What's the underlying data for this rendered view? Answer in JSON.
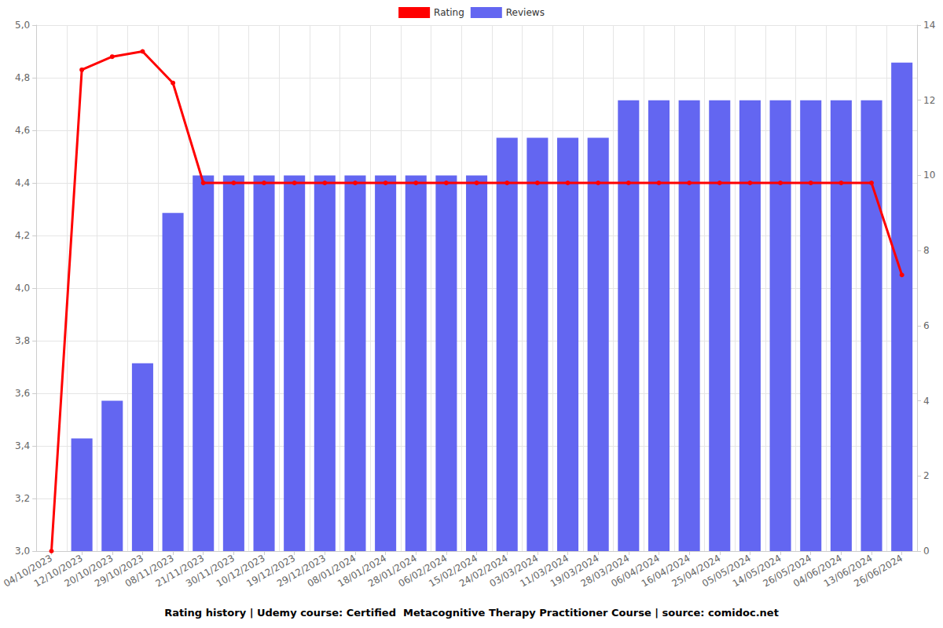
{
  "chart_data": {
    "type": "bar",
    "title": "Rating history | Udemy course: Certified  Metacognitive Therapy Practitioner Course | source: comidoc.net",
    "categories": [
      "04/10/2023",
      "12/10/2023",
      "20/10/2023",
      "29/10/2023",
      "08/11/2023",
      "21/11/2023",
      "30/11/2023",
      "10/12/2023",
      "19/12/2023",
      "29/12/2023",
      "08/01/2024",
      "18/01/2024",
      "28/01/2024",
      "06/02/2024",
      "15/02/2024",
      "24/02/2024",
      "03/03/2024",
      "11/03/2024",
      "19/03/2024",
      "28/03/2024",
      "06/04/2024",
      "16/04/2024",
      "25/04/2024",
      "05/05/2024",
      "14/05/2024",
      "26/05/2024",
      "04/06/2024",
      "13/06/2024",
      "26/06/2024"
    ],
    "series": [
      {
        "name": "Rating",
        "type": "line",
        "color": "#ff0000",
        "marker": "circle",
        "values": [
          3.0,
          4.83,
          4.88,
          4.9,
          4.78,
          4.4,
          4.4,
          4.4,
          4.4,
          4.4,
          4.4,
          4.4,
          4.4,
          4.4,
          4.4,
          4.4,
          4.4,
          4.4,
          4.4,
          4.4,
          4.4,
          4.4,
          4.4,
          4.4,
          4.4,
          4.4,
          4.4,
          4.4,
          4.05
        ]
      },
      {
        "name": "Reviews",
        "type": "bar",
        "color": "#6366f1",
        "axis": "y2",
        "values": [
          0,
          3,
          4,
          5,
          9,
          10,
          10,
          10,
          10,
          10,
          10,
          10,
          10,
          10,
          10,
          11,
          11,
          11,
          11,
          12,
          12,
          12,
          12,
          12,
          12,
          12,
          12,
          12,
          13
        ]
      }
    ],
    "ylim": [
      3.0,
      5.0
    ],
    "yticks": [
      {
        "value": 3.0,
        "label": "3,0"
      },
      {
        "value": 3.2,
        "label": "3,2"
      },
      {
        "value": 3.4,
        "label": "3,4"
      },
      {
        "value": 3.6,
        "label": "3,6"
      },
      {
        "value": 3.8,
        "label": "3,8"
      },
      {
        "value": 4.0,
        "label": "4,0"
      },
      {
        "value": 4.2,
        "label": "4,2"
      },
      {
        "value": 4.4,
        "label": "4,4"
      },
      {
        "value": 4.6,
        "label": "4,6"
      },
      {
        "value": 4.8,
        "label": "4,8"
      },
      {
        "value": 5.0,
        "label": "5,0"
      }
    ],
    "y2lim": [
      0,
      14
    ],
    "y2ticks": [
      0,
      2,
      4,
      6,
      8,
      10,
      12,
      14
    ],
    "grid": true,
    "legend": "top"
  }
}
